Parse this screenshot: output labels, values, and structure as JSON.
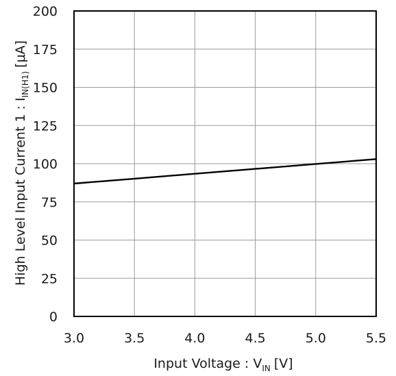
{
  "chart_data": {
    "type": "line",
    "xlabel": {
      "main": "Input Voltage : V",
      "sub": "IN",
      "unit": "[V]"
    },
    "ylabel": {
      "main": "High Level Input Current 1 : I",
      "sub": "IN(H1)",
      "unit": "[μA]"
    },
    "xlim": [
      3.0,
      5.5
    ],
    "ylim": [
      0,
      200
    ],
    "xticks": [
      "3.0",
      "3.5",
      "4.0",
      "4.5",
      "5.0",
      "5.5"
    ],
    "yticks": [
      "0",
      "25",
      "50",
      "75",
      "100",
      "125",
      "150",
      "175",
      "200"
    ],
    "grid": true,
    "series": [
      {
        "x": [
          3.0,
          3.5,
          4.0,
          4.5,
          5.0,
          5.5
        ],
        "y": [
          87,
          90.2,
          93.4,
          96.6,
          99.8,
          103
        ]
      }
    ]
  }
}
